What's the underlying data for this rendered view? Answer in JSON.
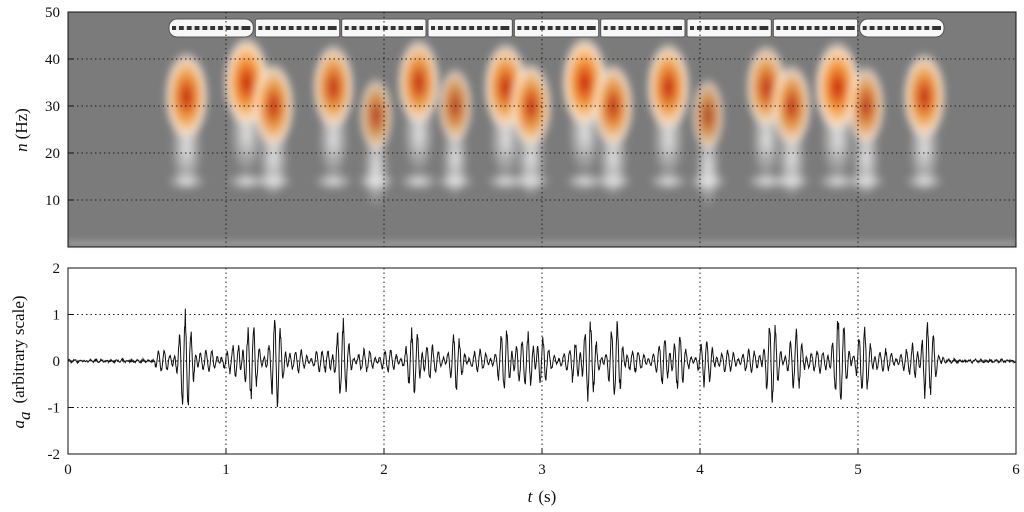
{
  "chart_data": [
    {
      "type": "heatmap",
      "title": "",
      "xlabel": "",
      "ylabel_symbol": "n",
      "ylabel_unit": "(Hz)",
      "xlim": [
        0,
        6
      ],
      "ylim": [
        0,
        50
      ],
      "yticks": [
        10,
        20,
        30,
        40,
        50
      ],
      "xticks": [
        1,
        2,
        3,
        4,
        5
      ],
      "grid": true,
      "colors": {
        "background": "#7b7b7b",
        "low": "#f4f4f4",
        "mid": "#f39a3c",
        "high": "#c81e05"
      },
      "blobs": [
        {
          "t": 0.75,
          "n": 32,
          "strength": 0.9
        },
        {
          "t": 1.13,
          "n": 35,
          "strength": 1.0
        },
        {
          "t": 1.3,
          "n": 30,
          "strength": 0.8
        },
        {
          "t": 1.68,
          "n": 34,
          "strength": 0.8
        },
        {
          "t": 1.95,
          "n": 28,
          "strength": 0.4
        },
        {
          "t": 2.22,
          "n": 35,
          "strength": 0.85
        },
        {
          "t": 2.45,
          "n": 30,
          "strength": 0.45
        },
        {
          "t": 2.77,
          "n": 34,
          "strength": 0.9
        },
        {
          "t": 2.93,
          "n": 30,
          "strength": 0.8
        },
        {
          "t": 3.27,
          "n": 35,
          "strength": 1.0
        },
        {
          "t": 3.45,
          "n": 30,
          "strength": 0.75
        },
        {
          "t": 3.8,
          "n": 34,
          "strength": 0.9
        },
        {
          "t": 4.05,
          "n": 28,
          "strength": 0.35
        },
        {
          "t": 4.42,
          "n": 34,
          "strength": 0.75
        },
        {
          "t": 4.58,
          "n": 30,
          "strength": 0.7
        },
        {
          "t": 4.87,
          "n": 34,
          "strength": 1.0
        },
        {
          "t": 5.05,
          "n": 30,
          "strength": 0.6
        },
        {
          "t": 5.42,
          "n": 32,
          "strength": 0.85
        }
      ],
      "train_cars": 9
    },
    {
      "type": "line",
      "title": "",
      "xlabel_symbol": "t",
      "xlabel_unit": "(s)",
      "ylabel_symbol": "a",
      "ylabel_sub": "a",
      "ylabel_text": "(arbitrary scale)",
      "xlim": [
        0,
        6
      ],
      "ylim": [
        -2,
        2
      ],
      "xticks": [
        0,
        1,
        2,
        3,
        4,
        5,
        6
      ],
      "yticks": [
        -2,
        -1,
        0,
        1,
        2
      ],
      "grid": true,
      "series_color": "#111111",
      "bursts": [
        {
          "t": 0.75,
          "amp": 1.0
        },
        {
          "t": 1.13,
          "amp": 0.9
        },
        {
          "t": 1.32,
          "amp": 0.85
        },
        {
          "t": 1.72,
          "amp": 0.8
        },
        {
          "t": 2.22,
          "amp": 0.8
        },
        {
          "t": 2.45,
          "amp": 0.55
        },
        {
          "t": 2.8,
          "amp": 0.85
        },
        {
          "t": 2.95,
          "amp": 0.8
        },
        {
          "t": 3.27,
          "amp": 0.95
        },
        {
          "t": 3.48,
          "amp": 0.8
        },
        {
          "t": 3.82,
          "amp": 0.8
        },
        {
          "t": 4.05,
          "amp": 0.5
        },
        {
          "t": 4.45,
          "amp": 0.8
        },
        {
          "t": 4.62,
          "amp": 0.65
        },
        {
          "t": 4.88,
          "amp": 0.95
        },
        {
          "t": 5.05,
          "amp": 0.75
        },
        {
          "t": 5.42,
          "amp": 0.9
        }
      ]
    }
  ]
}
